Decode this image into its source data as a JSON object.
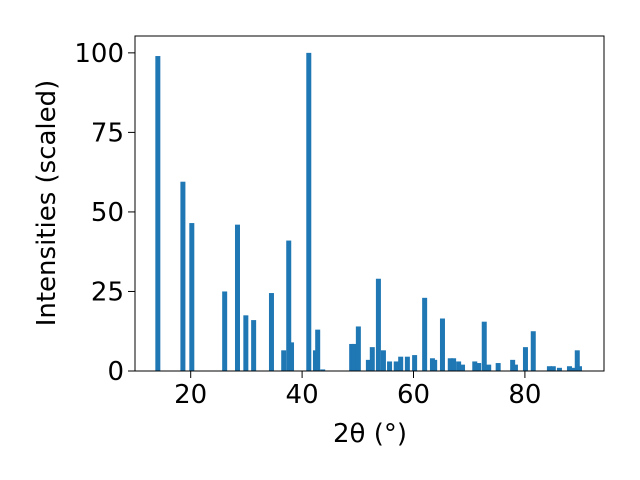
{
  "chart_data": {
    "type": "bar",
    "x_label": "2θ (°)",
    "y_label": "Intensities (scaled)",
    "color": "#1f77b4",
    "x": [
      14.1,
      18.6,
      20.2,
      26.1,
      28.4,
      29.9,
      31.3,
      34.5,
      36.7,
      37.6,
      38.1,
      41.2,
      42.4,
      42.8,
      43.7,
      48.9,
      49.4,
      50.1,
      51.9,
      52.6,
      53.7,
      54.6,
      55.7,
      56.9,
      57.7,
      58.9,
      60.2,
      62.0,
      63.4,
      63.8,
      65.2,
      66.6,
      67.2,
      68.1,
      68.8,
      71.0,
      71.7,
      72.7,
      73.5,
      75.2,
      77.8,
      78.3,
      80.1,
      81.5,
      84.4,
      85.1,
      86.2,
      88.0,
      88.7,
      89.4,
      89.8
    ],
    "values": [
      99,
      59.5,
      46.5,
      25,
      46,
      17.5,
      16,
      24.5,
      6.5,
      41,
      9,
      100,
      6.5,
      13,
      0.5,
      8.5,
      8.5,
      14,
      3.5,
      7.5,
      29,
      6.5,
      3,
      3,
      4.5,
      4.5,
      5,
      23,
      4,
      3.5,
      16.5,
      4,
      4,
      3,
      2,
      3,
      2.5,
      15.5,
      2,
      2.5,
      3.5,
      2,
      7.5,
      12.5,
      1.5,
      1.5,
      1,
      1.5,
      1,
      6.5,
      1.5
    ],
    "xlim": [
      10,
      94.2
    ],
    "ylim": [
      0,
      105.3
    ],
    "xticks": [
      20,
      40,
      60,
      80
    ],
    "yticks": [
      0,
      25,
      50,
      75,
      100
    ]
  }
}
